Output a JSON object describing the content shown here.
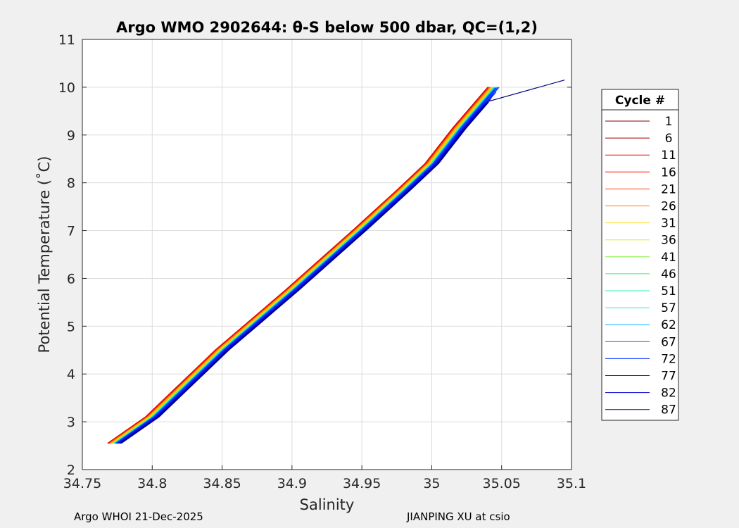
{
  "chart_data": {
    "type": "line",
    "title": "Argo WMO 2902644: θ-S below 500 dbar,  QC=(1,2)",
    "xlabel": "Salinity",
    "ylabel": "Potential Temperature (˚C)",
    "xlim": [
      34.75,
      35.1
    ],
    "ylim": [
      2,
      11
    ],
    "xticks": [
      "34.75",
      "34.8",
      "34.85",
      "34.9",
      "34.95",
      "35",
      "35.05",
      "35.1"
    ],
    "yticks": [
      "2",
      "3",
      "4",
      "5",
      "6",
      "7",
      "8",
      "9",
      "10",
      "11"
    ],
    "grid": true,
    "legend": {
      "title": "Cycle #",
      "placement": "right"
    },
    "base_curve": {
      "S": [
        34.773,
        34.8,
        34.85,
        34.9,
        34.95,
        34.98,
        35.0,
        35.02,
        35.045
      ],
      "T": [
        2.55,
        3.1,
        4.5,
        5.75,
        7.05,
        7.85,
        8.4,
        9.15,
        10.0
      ]
    },
    "series": [
      {
        "name": "1",
        "color": "#800000",
        "dS": -0.0045,
        "Tmax": 10.35
      },
      {
        "name": "6",
        "color": "#a00000",
        "dS": -0.004,
        "Tmax": 10.4
      },
      {
        "name": "11",
        "color": "#ff0000",
        "dS": -0.0035,
        "Tmax": 10.55
      },
      {
        "name": "16",
        "color": "#ff1000",
        "dS": -0.003,
        "Tmax": 10.2
      },
      {
        "name": "21",
        "color": "#ff4000",
        "dS": -0.0025,
        "Tmax": 10.1
      },
      {
        "name": "26",
        "color": "#ff8000",
        "dS": -0.002,
        "Tmax": 10.0
      },
      {
        "name": "31",
        "color": "#ffd200",
        "dS": -0.0015,
        "Tmax": 10.1
      },
      {
        "name": "36",
        "color": "#d0f020",
        "dS": -0.001,
        "Tmax": 10.15
      },
      {
        "name": "41",
        "color": "#80f040",
        "dS": 0.0005,
        "Tmax": 9.9
      },
      {
        "name": "46",
        "color": "#40f070",
        "dS": 0.0,
        "Tmax": 10.0
      },
      {
        "name": "51",
        "color": "#30f0b0",
        "dS": 0.0005,
        "Tmax": 10.1
      },
      {
        "name": "57",
        "color": "#30e8e8",
        "dS": 0.001,
        "Tmax": 10.2
      },
      {
        "name": "62",
        "color": "#00b0ff",
        "dS": 0.0015,
        "Tmax": 10.0
      },
      {
        "name": "67",
        "color": "#0060ff",
        "dS": 0.002,
        "Tmax": 9.9
      },
      {
        "name": "72",
        "color": "#0030ff",
        "dS": 0.0025,
        "Tmax": 10.2
      },
      {
        "name": "77",
        "color": "#0010f0",
        "dS": 0.003,
        "Tmax": 9.7
      },
      {
        "name": "82",
        "color": "#0000d0",
        "dS": 0.0035,
        "Tmax": 9.6
      },
      {
        "name": "87",
        "color": "#000080",
        "dS": 0.004,
        "Tmax": 9.5,
        "extra": [
          [
            35.04,
            9.7
          ],
          [
            35.095,
            10.15
          ]
        ]
      }
    ]
  },
  "footer": {
    "left": "Argo WHOI 21-Dec-2025",
    "right": "JIANPING XU at csio"
  }
}
